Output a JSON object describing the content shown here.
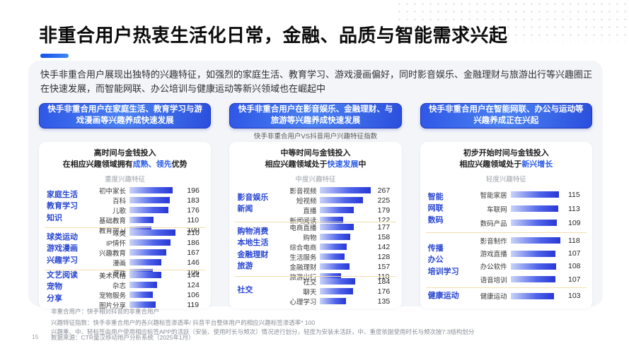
{
  "page": {
    "number": "15"
  },
  "header": {
    "title": "非重合用户热衷生活化日常，金融、品质与智能需求兴起",
    "accent_color": "#1f62f0"
  },
  "intro": {
    "text": "快手非重合用户展现出独特的兴趣特征，如强烈的家庭生活、教育学习、游戏漫画偏好，同时影音娱乐、金融理财与旅游出行等兴趣圈正在快速发展，而智能网联、办公培训与健康运动等新兴领域也在崛起中"
  },
  "vs_note": "快手非重合用户VS抖音用户兴趣特征指数",
  "colors": {
    "badge_blue": "#2e57e6",
    "highlight_blue": "#2b5ce6",
    "group_label_blue": "#2846d2",
    "bar_light": "#c9d3f8",
    "bar_dark": "#2838d4",
    "separator_yellow": "#f1deae"
  },
  "chart_data": [
    {
      "type": "bar",
      "orientation": "horizontal",
      "badge": "快手非重合用户在家庭生活、教育学习与游戏漫画等兴趣养成快速发展",
      "subtitle_line1": "高时间与金钱投入",
      "subtitle_line2": {
        "prefix": "在相应兴趣领域拥有",
        "highlight": "成熟、领先",
        "suffix": "优势"
      },
      "title": "重度兴趣特征",
      "axis_max": 245,
      "groups": [
        {
          "label": [
            "家庭生活",
            "教育学习",
            "知识"
          ],
          "rows": [
            [
              "初中家长",
              196
            ],
            [
              "百科",
              183
            ],
            [
              "儿歌",
              176
            ],
            [
              "基础教育",
              110
            ],
            [
              "教育学习",
              100
            ]
          ]
        },
        {
          "label": [
            "球类运动",
            "游戏漫画",
            "兴趣学习"
          ],
          "rows": [
            [
              "球类",
              210
            ],
            [
              "IP情怀",
              186
            ],
            [
              "兴趣教育",
              167
            ],
            [
              "漫画",
              146
            ],
            [
              "游戏",
              106
            ]
          ]
        },
        {
          "label": [
            "文艺阅读",
            "宠物",
            "分享"
          ],
          "rows": [
            [
              "美术风格",
              144
            ],
            [
              "杂志",
              124
            ],
            [
              "宠物服务",
              106
            ],
            [
              "图片分享",
              119
            ]
          ]
        }
      ]
    },
    {
      "type": "bar",
      "orientation": "horizontal",
      "badge": "快手非重合用户在影音娱乐、金融理财、与旅游等兴趣养成快速发展",
      "subtitle_line1": "中等时间与金钱投入",
      "subtitle_line2": {
        "prefix": "相应兴趣领域处于",
        "highlight": "快速发展",
        "suffix": "中"
      },
      "title": "中度兴趣特征",
      "axis_max": 285,
      "groups": [
        {
          "label": [
            "影音娱乐",
            "新闻"
          ],
          "rows": [
            [
              "影音视频",
              267
            ],
            [
              "短视频",
              225
            ],
            [
              "直播",
              179
            ],
            [
              "新闻阅读",
              122
            ]
          ]
        },
        {
          "label": [
            "购物消费",
            "本地生活",
            "金融理财",
            "旅游"
          ],
          "rows": [
            [
              "电商直播",
              177
            ],
            [
              "购物",
              158
            ],
            [
              "综合电商",
              142
            ],
            [
              "生活服务",
              128
            ],
            [
              "金融理财",
              157
            ],
            [
              "旅游出行",
              110
            ]
          ]
        },
        {
          "label": [
            "社交"
          ],
          "rows": [
            [
              "社交",
              184
            ],
            [
              "聊天",
              176
            ],
            [
              "心理学习",
              135
            ]
          ]
        }
      ]
    },
    {
      "type": "bar",
      "orientation": "horizontal",
      "badge": "快手非重合用户在智能网联、办公与运动等兴趣养成正在兴起",
      "subtitle_line1": "初步开始时间与金钱投入",
      "subtitle_line2": {
        "prefix": "相应兴趣领域处于",
        "highlight": "新兴增长",
        "suffix": ""
      },
      "title": "轻度兴趣特征",
      "axis_max": 128,
      "groups": [
        {
          "label": [
            "智能",
            "网联",
            "数码"
          ],
          "rows": [
            [
              "智能家居",
              115
            ],
            [
              "车联网",
              113
            ],
            [
              "数码产品",
              109
            ]
          ]
        },
        {
          "label": [
            "传播",
            "办公",
            "培训学习"
          ],
          "rows": [
            [
              "影音制作",
              118
            ],
            [
              "游戏直播",
              107
            ],
            [
              "办公软件",
              108
            ],
            [
              "语音培训",
              107
            ]
          ]
        },
        {
          "label": [
            "健康运动"
          ],
          "rows": [
            [
              "健康运动",
              103
            ]
          ]
        }
      ]
    }
  ],
  "footnotes": [
    "非重合用户：快手相对抖音的非重合用户",
    "兴趣特征指数：快手非重合用户的各兴趣标签渗透率/ 抖音平台整体用户的相应兴趣标签渗透率* 100",
    "兴趣重、中、轻标签由用户使用相应标签APP的活跃（安装、使用时长与频次）情况进行划分，轻度为安装未活跃，中、重度依据使用时长与频次按7:3结构划分"
  ],
  "source": {
    "text": "数据来源：CTR量汉移动用户分析系统（2025年1月）"
  }
}
